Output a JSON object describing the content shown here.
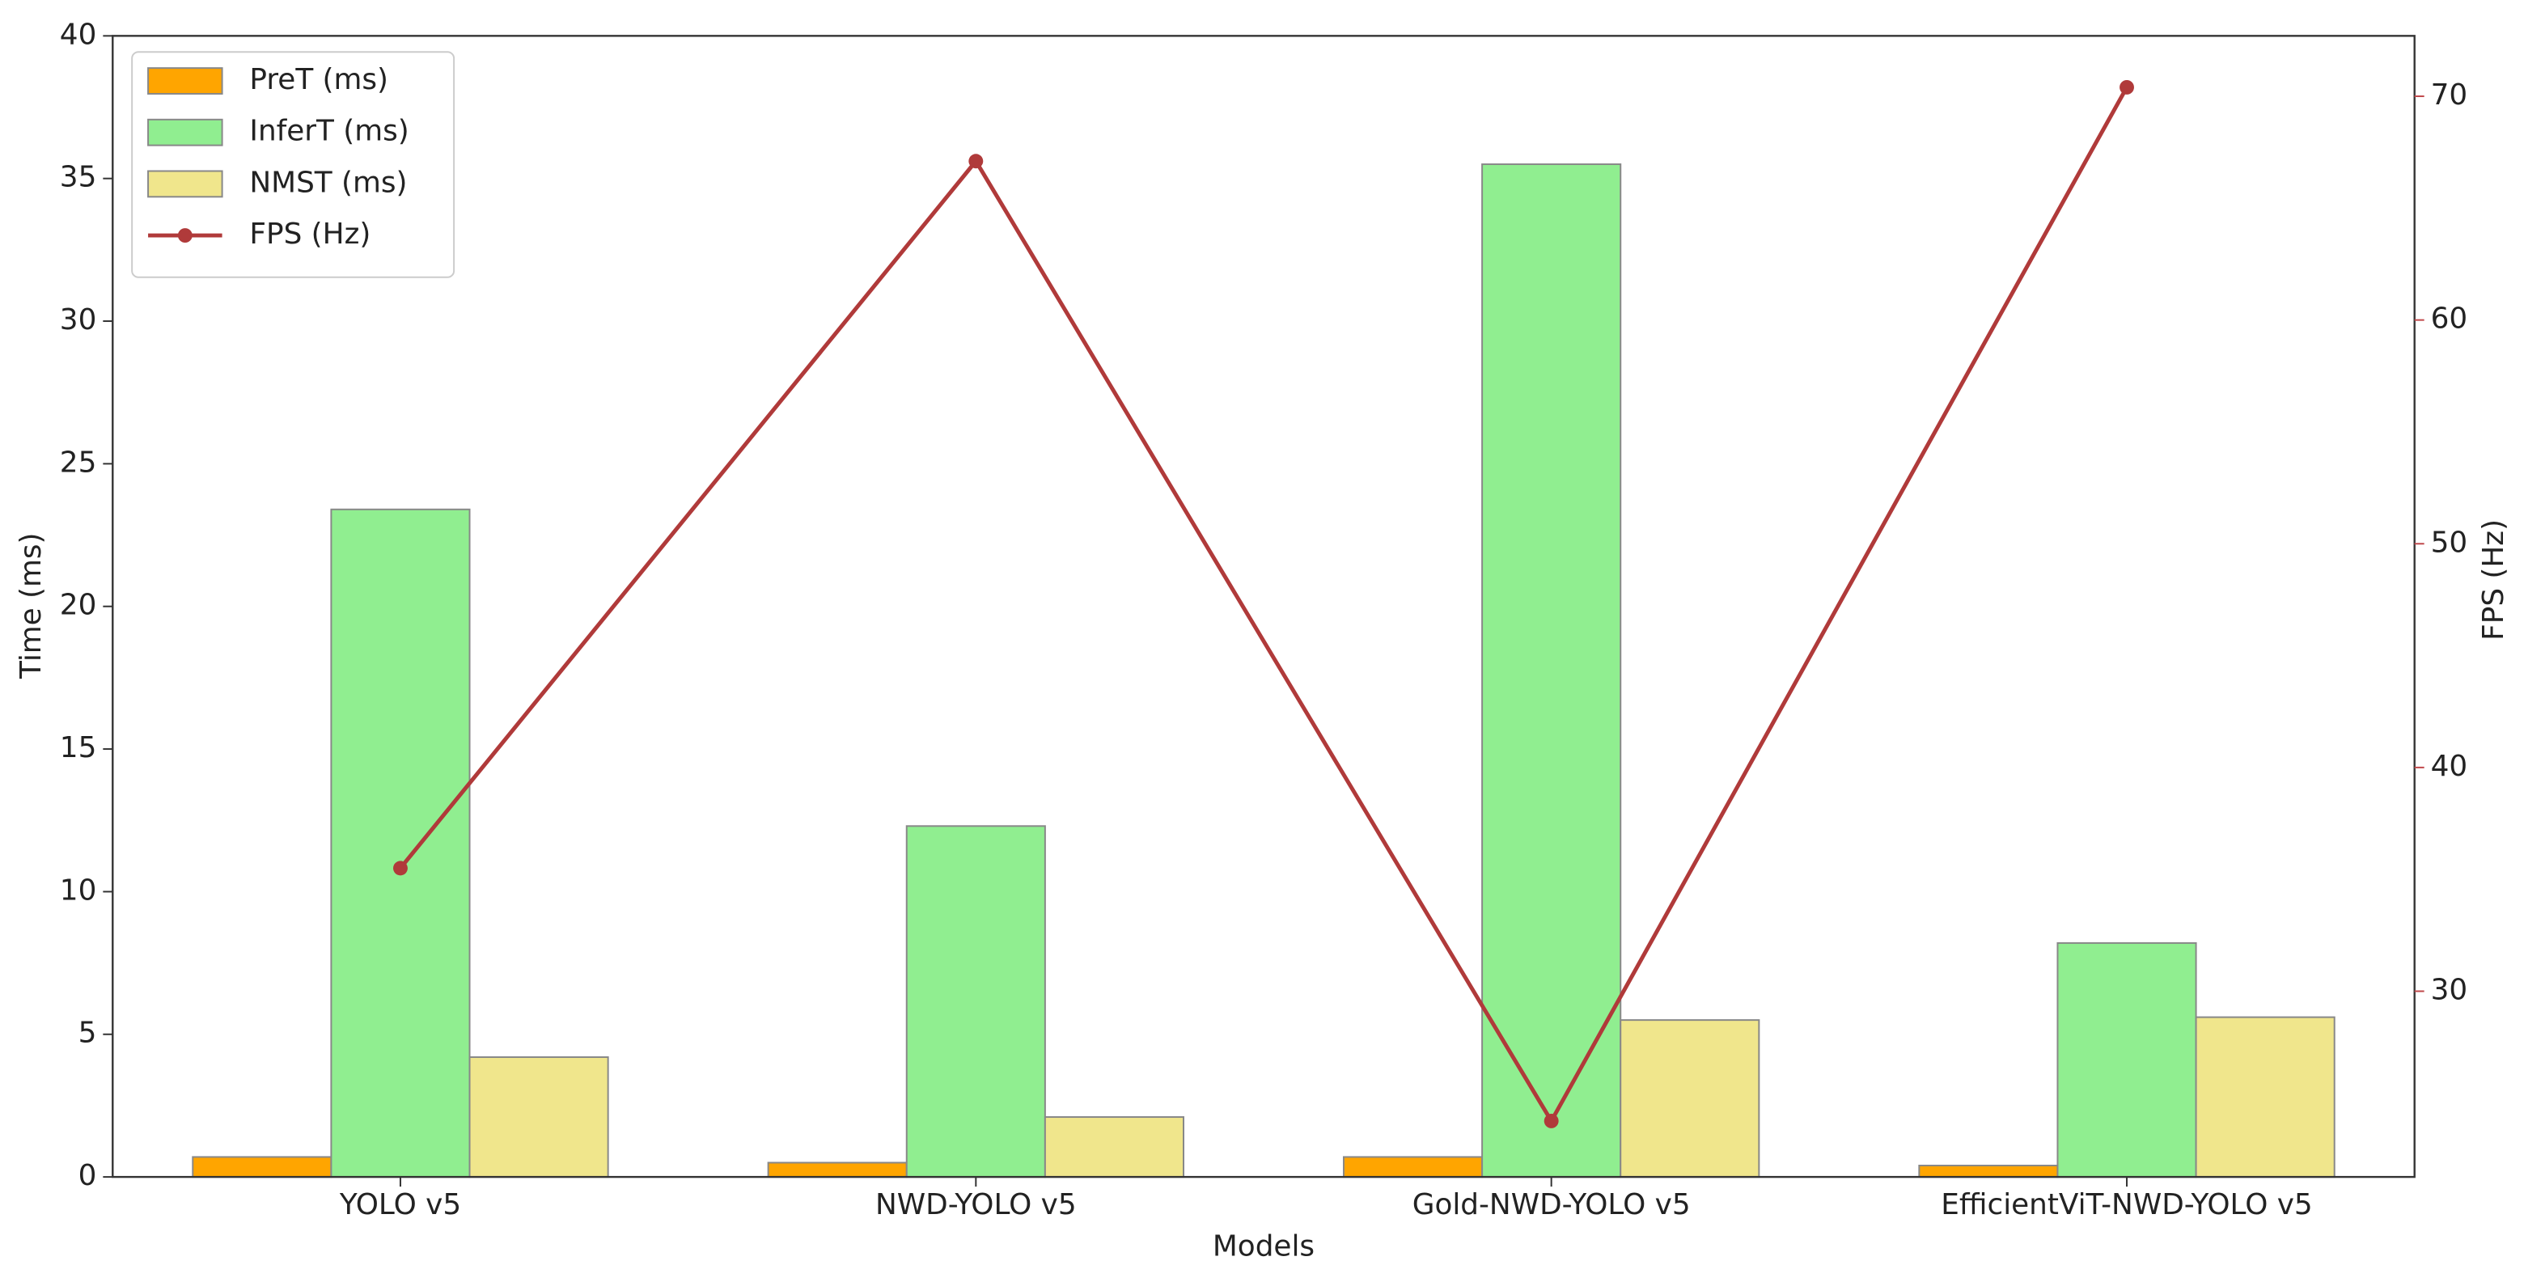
{
  "chart_data": {
    "type": "bar",
    "xlabel": "Models",
    "ylabel": "Time (ms)",
    "y2label": "FPS (Hz)",
    "categories": [
      "YOLO v5",
      "NWD-YOLO v5",
      "Gold-NWD-YOLO v5",
      "EfficientViT-NWD-YOLO v5"
    ],
    "series": [
      {
        "name": "PreT (ms)",
        "color": "#ffa500",
        "values": [
          0.7,
          0.5,
          0.7,
          0.4
        ]
      },
      {
        "name": "InferT (ms)",
        "color": "#90ee90",
        "values": [
          23.4,
          12.3,
          35.5,
          8.2
        ]
      },
      {
        "name": "NMST (ms)",
        "color": "#f0e68c",
        "values": [
          4.2,
          2.1,
          5.5,
          5.6
        ]
      },
      {
        "name": "FPS (Hz)",
        "color": "#b03a3a",
        "type": "line",
        "axis": "y2",
        "values": [
          35.5,
          67.1,
          24.2,
          70.4
        ]
      }
    ],
    "ylim": [
      0,
      40
    ],
    "yticks": [
      0,
      5,
      10,
      15,
      20,
      25,
      30,
      35,
      40
    ],
    "y2lim": [
      21.7,
      72.7
    ],
    "y2ticks": [
      30,
      40,
      50,
      60,
      70
    ],
    "y2_color": "#c0484b",
    "legend": "upper left",
    "grid": false
  }
}
